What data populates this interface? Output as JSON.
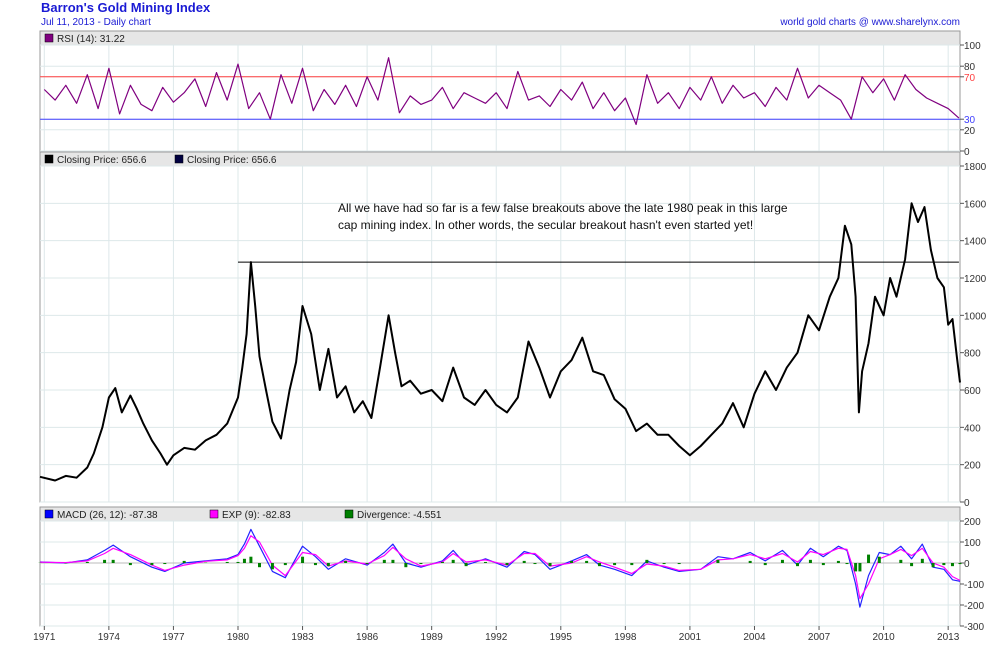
{
  "header": {
    "title": "Barron's Gold Mining Index",
    "subtitle": "Jul 11, 2013 - Daily chart",
    "credit": "world gold charts @ www.sharelynx.com"
  },
  "chart_data": [
    {
      "type": "line",
      "panel": "rsi",
      "legend": [
        {
          "label": "RSI (14): 31.22",
          "color": "#800080"
        }
      ],
      "ylim": [
        0,
        100
      ],
      "yticks": [
        0,
        20,
        30,
        70,
        80,
        100
      ],
      "reference_lines": [
        {
          "value": 70,
          "color": "#ff4040",
          "label": "70"
        },
        {
          "value": 30,
          "color": "#4040ff",
          "label": "30"
        }
      ],
      "series": [
        {
          "name": "RSI (14)",
          "color": "#800080",
          "x": [
            1971,
            1971.5,
            1972,
            1972.5,
            1973,
            1973.5,
            1974,
            1974.5,
            1975,
            1975.5,
            1976,
            1976.5,
            1977,
            1977.5,
            1978,
            1978.5,
            1979,
            1979.5,
            1980,
            1980.5,
            1981,
            1981.5,
            1982,
            1982.5,
            1983,
            1983.5,
            1984,
            1984.5,
            1985,
            1985.5,
            1986,
            1986.5,
            1987,
            1987.5,
            1988,
            1988.5,
            1989,
            1989.5,
            1990,
            1990.5,
            1991,
            1991.5,
            1992,
            1992.5,
            1993,
            1993.5,
            1994,
            1994.5,
            1995,
            1995.5,
            1996,
            1996.5,
            1997,
            1997.5,
            1998,
            1998.5,
            1999,
            1999.5,
            2000,
            2000.5,
            2001,
            2001.5,
            2002,
            2002.5,
            2003,
            2003.5,
            2004,
            2004.5,
            2005,
            2005.5,
            2006,
            2006.5,
            2007,
            2007.5,
            2008,
            2008.5,
            2009,
            2009.5,
            2010,
            2010.5,
            2011,
            2011.5,
            2012,
            2012.5,
            2013,
            2013.5
          ],
          "values": [
            58,
            48,
            62,
            45,
            72,
            40,
            78,
            35,
            62,
            44,
            38,
            60,
            46,
            55,
            68,
            42,
            74,
            48,
            82,
            40,
            55,
            30,
            72,
            45,
            78,
            38,
            58,
            44,
            62,
            42,
            70,
            48,
            88,
            36,
            52,
            44,
            48,
            60,
            40,
            55,
            50,
            45,
            55,
            40,
            75,
            48,
            52,
            42,
            58,
            48,
            65,
            40,
            55,
            38,
            50,
            25,
            72,
            45,
            55,
            40,
            60,
            48,
            70,
            45,
            62,
            50,
            55,
            42,
            60,
            48,
            78,
            50,
            62,
            55,
            48,
            30,
            70,
            55,
            68,
            48,
            72,
            58,
            50,
            45,
            40,
            31
          ]
        }
      ]
    },
    {
      "type": "line",
      "panel": "price",
      "legend": [
        {
          "label": "Closing Price: 656.6",
          "color": "#000000"
        },
        {
          "label": "Closing Price: 656.6",
          "color": "#000040"
        }
      ],
      "ylim": [
        0,
        1800
      ],
      "yticks": [
        0,
        200,
        400,
        600,
        800,
        1000,
        1200,
        1400,
        1600,
        1800
      ],
      "annotation": "All we have had so far is a few false breakouts above the late 1980 peak in this large cap mining index. In other words, the secular breakout hasn't even started yet!",
      "reference_lines": [
        {
          "value": 1285,
          "color": "#000000",
          "from": 1980.0,
          "to": 2013.5
        }
      ],
      "series": [
        {
          "name": "Closing Price",
          "color": "#000000",
          "x": [
            1970.8,
            1971.5,
            1972,
            1972.5,
            1973,
            1973.3,
            1973.7,
            1974.0,
            1974.3,
            1974.6,
            1975.0,
            1975.3,
            1975.6,
            1976.0,
            1976.4,
            1976.7,
            1977.0,
            1977.5,
            1978.0,
            1978.5,
            1979.0,
            1979.5,
            1980.0,
            1980.2,
            1980.4,
            1980.6,
            1980.8,
            1981.0,
            1981.3,
            1981.6,
            1982.0,
            1982.4,
            1982.7,
            1983.0,
            1983.4,
            1983.8,
            1984.2,
            1984.6,
            1985.0,
            1985.4,
            1985.8,
            1986.2,
            1986.6,
            1987.0,
            1987.3,
            1987.6,
            1988.0,
            1988.5,
            1989.0,
            1989.5,
            1990.0,
            1990.5,
            1991.0,
            1991.5,
            1992.0,
            1992.5,
            1993.0,
            1993.5,
            1994.0,
            1994.5,
            1995.0,
            1995.5,
            1996.0,
            1996.5,
            1997.0,
            1997.5,
            1998.0,
            1998.5,
            1999.0,
            1999.5,
            2000.0,
            2000.5,
            2001.0,
            2001.5,
            2002.0,
            2002.5,
            2003.0,
            2003.5,
            2004.0,
            2004.5,
            2005.0,
            2005.5,
            2006.0,
            2006.5,
            2007.0,
            2007.5,
            2007.9,
            2008.2,
            2008.5,
            2008.7,
            2008.85,
            2009.0,
            2009.3,
            2009.6,
            2010.0,
            2010.3,
            2010.6,
            2011.0,
            2011.3,
            2011.6,
            2011.9,
            2012.2,
            2012.5,
            2012.8,
            2013.0,
            2013.2,
            2013.4,
            2013.55
          ],
          "values": [
            135,
            115,
            140,
            130,
            185,
            260,
            400,
            560,
            610,
            480,
            570,
            500,
            420,
            330,
            260,
            200,
            250,
            290,
            280,
            330,
            360,
            420,
            560,
            720,
            900,
            1285,
            1050,
            780,
            600,
            430,
            340,
            600,
            750,
            1050,
            900,
            600,
            820,
            560,
            620,
            480,
            540,
            450,
            720,
            1000,
            800,
            620,
            650,
            580,
            600,
            540,
            720,
            560,
            520,
            600,
            520,
            480,
            560,
            860,
            720,
            560,
            700,
            760,
            880,
            700,
            680,
            550,
            500,
            380,
            420,
            360,
            360,
            300,
            250,
            300,
            360,
            420,
            530,
            400,
            580,
            700,
            600,
            720,
            800,
            1000,
            920,
            1100,
            1200,
            1480,
            1380,
            1100,
            480,
            700,
            850,
            1100,
            1000,
            1200,
            1100,
            1300,
            1600,
            1500,
            1580,
            1350,
            1200,
            1150,
            950,
            980,
            780,
            640
          ]
        }
      ]
    },
    {
      "type": "line",
      "panel": "macd",
      "legend": [
        {
          "label": "MACD (26, 12): -87.38",
          "color": "#0000ff"
        },
        {
          "label": "EXP (9): -82.83",
          "color": "#ff00ff"
        },
        {
          "label": "Divergence: -4.551",
          "color": "#008000"
        }
      ],
      "ylim": [
        -300,
        200
      ],
      "yticks": [
        -300,
        -200,
        -100,
        0,
        100,
        200
      ],
      "series": [
        {
          "name": "MACD (26, 12)",
          "color": "#2222ff",
          "x": [
            1970.8,
            1972,
            1973,
            1973.8,
            1974.2,
            1975,
            1976,
            1976.6,
            1977.5,
            1978.5,
            1979.5,
            1980.0,
            1980.3,
            1980.6,
            1981.0,
            1981.6,
            1982.2,
            1983.0,
            1983.6,
            1984.2,
            1985.0,
            1986.0,
            1986.8,
            1987.2,
            1987.8,
            1988.5,
            1989.5,
            1990.0,
            1990.6,
            1991.5,
            1992.5,
            1993.3,
            1993.8,
            1994.5,
            1995.5,
            1996.2,
            1996.8,
            1997.5,
            1998.3,
            1999.0,
            1999.8,
            2000.5,
            2001.5,
            2002.3,
            2003.0,
            2003.8,
            2004.5,
            2005.3,
            2006.0,
            2006.6,
            2007.2,
            2007.9,
            2008.3,
            2008.7,
            2008.9,
            2009.3,
            2009.8,
            2010.3,
            2010.8,
            2011.3,
            2011.8,
            2012.3,
            2012.8,
            2013.2,
            2013.55
          ],
          "values": [
            5,
            0,
            15,
            60,
            85,
            30,
            -20,
            -40,
            0,
            10,
            20,
            40,
            90,
            160,
            80,
            -40,
            -70,
            80,
            30,
            -30,
            20,
            -10,
            50,
            90,
            0,
            -20,
            10,
            60,
            -10,
            20,
            -20,
            55,
            40,
            -30,
            10,
            40,
            -10,
            -30,
            -60,
            10,
            -20,
            -40,
            -30,
            30,
            20,
            50,
            10,
            60,
            -10,
            70,
            30,
            80,
            60,
            -100,
            -210,
            -60,
            50,
            40,
            80,
            20,
            90,
            -20,
            -30,
            -80,
            -87
          ]
        },
        {
          "name": "EXP (9)",
          "color": "#ff00ff",
          "x": [
            1970.8,
            1972,
            1973,
            1973.8,
            1974.2,
            1975,
            1976,
            1976.6,
            1977.5,
            1978.5,
            1979.5,
            1980.0,
            1980.3,
            1980.6,
            1981.0,
            1981.6,
            1982.2,
            1983.0,
            1983.6,
            1984.2,
            1985.0,
            1986.0,
            1986.8,
            1987.2,
            1987.8,
            1988.5,
            1989.5,
            1990.0,
            1990.6,
            1991.5,
            1992.5,
            1993.3,
            1993.8,
            1994.5,
            1995.5,
            1996.2,
            1996.8,
            1997.5,
            1998.3,
            1999.0,
            1999.8,
            2000.5,
            2001.5,
            2002.3,
            2003.0,
            2003.8,
            2004.5,
            2005.3,
            2006.0,
            2006.6,
            2007.2,
            2007.9,
            2008.3,
            2008.7,
            2008.9,
            2009.3,
            2009.8,
            2010.3,
            2010.8,
            2011.3,
            2011.8,
            2012.3,
            2012.8,
            2013.2,
            2013.55
          ],
          "values": [
            4,
            2,
            10,
            45,
            70,
            40,
            -10,
            -35,
            -10,
            8,
            15,
            35,
            70,
            130,
            100,
            -10,
            -60,
            50,
            40,
            -15,
            10,
            -5,
            35,
            75,
            20,
            -15,
            5,
            45,
            5,
            15,
            -10,
            45,
            45,
            -15,
            0,
            30,
            5,
            -20,
            -50,
            -5,
            -15,
            -35,
            -30,
            15,
            20,
            40,
            20,
            45,
            5,
            55,
            40,
            70,
            65,
            -60,
            -170,
            -100,
            20,
            40,
            65,
            35,
            70,
            0,
            -20,
            -65,
            -83
          ]
        },
        {
          "name": "Divergence",
          "color": "#008000",
          "x": [
            1970.8,
            1972,
            1973,
            1973.8,
            1974.2,
            1975,
            1976,
            1976.6,
            1977.5,
            1978.5,
            1979.5,
            1980.0,
            1980.3,
            1980.6,
            1981.0,
            1981.6,
            1982.2,
            1983.0,
            1983.6,
            1984.2,
            1985.0,
            1986.0,
            1986.8,
            1987.2,
            1987.8,
            1988.5,
            1989.5,
            1990.0,
            1990.6,
            1991.5,
            1992.5,
            1993.3,
            1993.8,
            1994.5,
            1995.5,
            1996.2,
            1996.8,
            1997.5,
            1998.3,
            1999.0,
            1999.8,
            2000.5,
            2001.5,
            2002.3,
            2003.0,
            2003.8,
            2004.5,
            2005.3,
            2006.0,
            2006.6,
            2007.2,
            2007.9,
            2008.3,
            2008.7,
            2008.9,
            2009.3,
            2009.8,
            2010.3,
            2010.8,
            2011.3,
            2011.8,
            2012.3,
            2012.8,
            2013.2,
            2013.55
          ],
          "values": [
            1,
            -2,
            5,
            15,
            15,
            -10,
            -10,
            -5,
            10,
            2,
            5,
            5,
            20,
            30,
            -20,
            -30,
            -10,
            30,
            -10,
            -15,
            10,
            -5,
            15,
            15,
            -20,
            -5,
            5,
            15,
            -15,
            5,
            -10,
            10,
            -5,
            -15,
            10,
            10,
            -15,
            -10,
            -10,
            15,
            -5,
            -5,
            0,
            15,
            0,
            10,
            -10,
            15,
            -15,
            15,
            -10,
            10,
            -5,
            -40,
            -40,
            40,
            30,
            0,
            15,
            -15,
            20,
            -20,
            -10,
            -15,
            -5
          ]
        }
      ]
    }
  ],
  "x_axis": {
    "ticks": [
      "1971",
      "1974",
      "1977",
      "1980",
      "1983",
      "1986",
      "1989",
      "1992",
      "1995",
      "1998",
      "2001",
      "2004",
      "2007",
      "2010",
      "2013"
    ],
    "tick_values": [
      1971,
      1974,
      1977,
      1980,
      1983,
      1986,
      1989,
      1992,
      1995,
      1998,
      2001,
      2004,
      2007,
      2010,
      2013
    ],
    "range": [
      1970.8,
      2013.55
    ]
  },
  "colors": {
    "panel_header": "#e6e6e6",
    "grid": "#dde8ea",
    "frame": "#999999",
    "title": "#1a1ad4"
  }
}
